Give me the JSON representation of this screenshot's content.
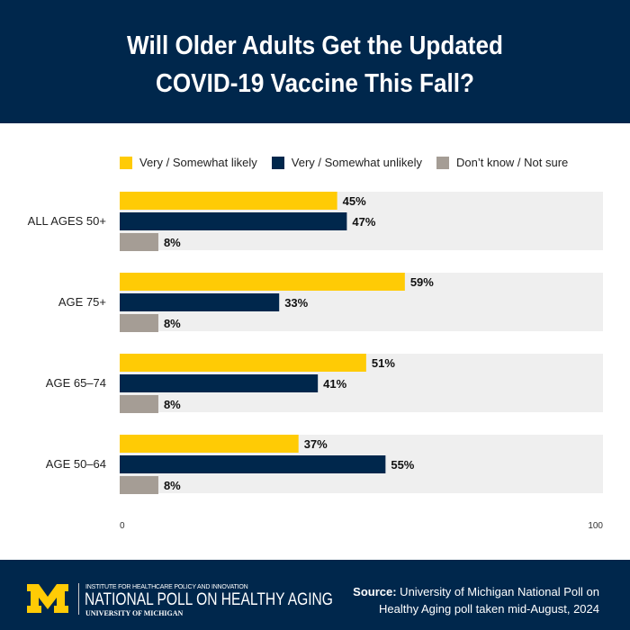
{
  "header": {
    "title": "Will Older Adults Get the Updated\nCOVID-19 Vaccine This Fall?"
  },
  "chart_data": {
    "type": "bar",
    "orientation": "horizontal",
    "title": "Will Older Adults Get the Updated COVID-19 Vaccine This Fall?",
    "categories": [
      "ALL AGES 50+",
      "AGE 75+",
      "AGE 65–74",
      "AGE 50–64"
    ],
    "series": [
      {
        "name": "Very / Somewhat likely",
        "color": "#ffcb05",
        "values": [
          45,
          59,
          51,
          37
        ]
      },
      {
        "name": "Very / Somewhat unlikely",
        "color": "#00274c",
        "values": [
          47,
          33,
          41,
          55
        ]
      },
      {
        "name": "Don’t know / Not sure",
        "color": "#a59d95",
        "values": [
          8,
          8,
          8,
          8
        ]
      }
    ],
    "xlim": [
      0,
      100
    ],
    "xticks": [
      "0",
      "100"
    ],
    "value_suffix": "%",
    "legend": "top",
    "grid": false
  },
  "footer": {
    "institute": "INSTITUTE FOR HEALTHCARE POLICY AND INNOVATION",
    "program": "NATIONAL POLL ON HEALTHY AGING",
    "university": "UNIVERSITY OF MICHIGAN",
    "logo_text": "M",
    "source_label": "Source:",
    "source_line1": " University of Michigan National Poll on",
    "source_line2": "Healthy Aging poll taken mid-August, 2024"
  }
}
